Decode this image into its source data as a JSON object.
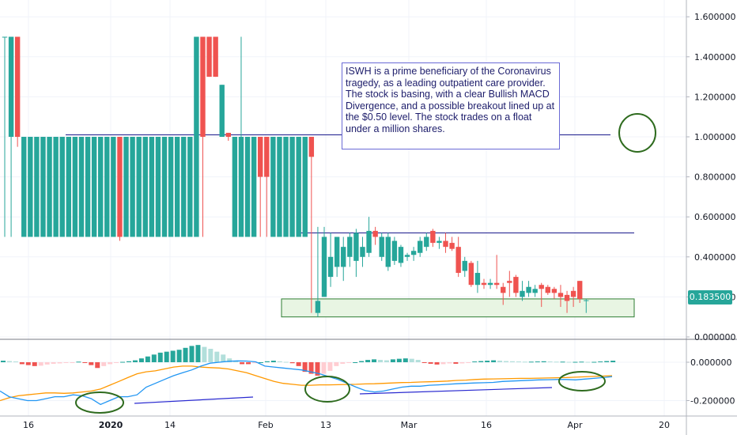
{
  "chart_data": [
    {
      "type": "candlestick",
      "symbol": "ISWH",
      "y_ticks": [
        "1.600000",
        "1.400000",
        "1.200000",
        "1.000000",
        "0.800000",
        "0.600000",
        "0.400000",
        "0.200000",
        "0.000000"
      ],
      "ylim": [
        -0.05,
        1.7
      ],
      "x_ticks": [
        "16",
        "2020",
        "14",
        "Feb",
        "13",
        "Mar",
        "16",
        "Apr",
        "20"
      ],
      "last_price": "0.183500",
      "colors": {
        "up": "#26a69a",
        "down": "#ef5350",
        "line": "#1a1a8c",
        "zone_fill": "#e8f5e3",
        "zone_border": "#2e7d32",
        "circle": "#2e6b1e"
      },
      "annotation": "ISWH is a prime beneficiary of the Coronavirus tragedy, as a leading outpatient care provider. The stock is basing, with a clear Bullish MACD Divergence, and a possible breakout lined up at the $0.50 level. The stock trades on a float under a million shares.",
      "horizontal_levels": [
        1.01,
        0.52
      ],
      "support_zone": [
        0.1,
        0.19
      ],
      "candles": [
        {
          "o": 1.5,
          "h": 1.5,
          "l": 0.5,
          "c": 1.5
        },
        {
          "o": 1.0,
          "h": 1.5,
          "l": 0.5,
          "c": 1.5
        },
        {
          "o": 1.5,
          "h": 1.5,
          "l": 0.95,
          "c": 1.0
        },
        {
          "o": 0.5,
          "h": 1.0,
          "l": 0.5,
          "c": 1.0
        },
        {
          "o": 0.5,
          "h": 1.0,
          "l": 0.5,
          "c": 1.0
        },
        {
          "o": 0.5,
          "h": 1.0,
          "l": 0.5,
          "c": 1.0
        },
        {
          "o": 0.5,
          "h": 1.0,
          "l": 0.5,
          "c": 1.0
        },
        {
          "o": 0.5,
          "h": 1.0,
          "l": 0.5,
          "c": 1.0
        },
        {
          "o": 0.5,
          "h": 1.0,
          "l": 0.5,
          "c": 1.0
        },
        {
          "o": 0.5,
          "h": 1.0,
          "l": 0.5,
          "c": 1.0
        },
        {
          "o": 0.5,
          "h": 1.0,
          "l": 0.5,
          "c": 1.0
        },
        {
          "o": 0.5,
          "h": 1.0,
          "l": 0.5,
          "c": 1.0
        },
        {
          "o": 0.5,
          "h": 1.0,
          "l": 0.5,
          "c": 1.0
        },
        {
          "o": 0.5,
          "h": 1.0,
          "l": 0.5,
          "c": 1.0
        },
        {
          "o": 0.5,
          "h": 1.0,
          "l": 0.5,
          "c": 1.0
        },
        {
          "o": 0.5,
          "h": 1.0,
          "l": 0.5,
          "c": 1.0
        },
        {
          "o": 0.5,
          "h": 1.0,
          "l": 0.5,
          "c": 1.0
        },
        {
          "o": 0.5,
          "h": 1.0,
          "l": 0.5,
          "c": 1.0
        },
        {
          "o": 1.0,
          "h": 1.0,
          "l": 0.48,
          "c": 0.5
        },
        {
          "o": 0.5,
          "h": 1.0,
          "l": 0.5,
          "c": 1.0
        },
        {
          "o": 0.5,
          "h": 1.0,
          "l": 0.5,
          "c": 1.0
        },
        {
          "o": 0.5,
          "h": 1.0,
          "l": 0.5,
          "c": 1.0
        },
        {
          "o": 0.5,
          "h": 1.0,
          "l": 0.5,
          "c": 1.0
        },
        {
          "o": 0.5,
          "h": 1.0,
          "l": 0.5,
          "c": 1.0
        },
        {
          "o": 0.5,
          "h": 1.0,
          "l": 0.5,
          "c": 1.0
        },
        {
          "o": 0.5,
          "h": 1.0,
          "l": 0.5,
          "c": 1.0
        },
        {
          "o": 0.5,
          "h": 1.0,
          "l": 0.5,
          "c": 1.0
        },
        {
          "o": 0.5,
          "h": 1.0,
          "l": 0.5,
          "c": 1.0
        },
        {
          "o": 0.5,
          "h": 1.0,
          "l": 0.5,
          "c": 1.0
        },
        {
          "o": 0.5,
          "h": 1.0,
          "l": 0.5,
          "c": 1.0
        },
        {
          "o": 0.5,
          "h": 1.5,
          "l": 0.5,
          "c": 1.5
        },
        {
          "o": 1.5,
          "h": 1.5,
          "l": 0.5,
          "c": 1.0
        },
        {
          "o": 1.5,
          "h": 1.5,
          "l": 1.3,
          "c": 1.3
        },
        {
          "o": 1.5,
          "h": 1.5,
          "l": 1.3,
          "c": 1.3
        },
        {
          "o": 1.0,
          "h": 1.26,
          "l": 1.0,
          "c": 1.26
        },
        {
          "o": 1.02,
          "h": 1.02,
          "l": 0.98,
          "c": 1.0
        },
        {
          "o": 0.5,
          "h": 1.0,
          "l": 0.5,
          "c": 1.0
        },
        {
          "o": 0.5,
          "h": 1.5,
          "l": 0.5,
          "c": 1.0
        },
        {
          "o": 0.5,
          "h": 1.0,
          "l": 0.5,
          "c": 1.0
        },
        {
          "o": 0.5,
          "h": 1.0,
          "l": 0.5,
          "c": 1.0
        },
        {
          "o": 1.0,
          "h": 1.0,
          "l": 0.5,
          "c": 0.8
        },
        {
          "o": 1.0,
          "h": 1.0,
          "l": 0.5,
          "c": 0.8
        },
        {
          "o": 0.5,
          "h": 1.0,
          "l": 0.5,
          "c": 1.0
        },
        {
          "o": 0.5,
          "h": 1.0,
          "l": 0.5,
          "c": 1.0
        },
        {
          "o": 0.5,
          "h": 1.0,
          "l": 0.5,
          "c": 1.0
        },
        {
          "o": 0.5,
          "h": 1.0,
          "l": 0.5,
          "c": 1.0
        },
        {
          "o": 0.5,
          "h": 1.0,
          "l": 0.5,
          "c": 1.0
        },
        {
          "o": 0.5,
          "h": 1.0,
          "l": 0.5,
          "c": 1.0
        },
        {
          "o": 1.0,
          "h": 1.0,
          "l": 0.12,
          "c": 0.9
        },
        {
          "o": 0.12,
          "h": 0.55,
          "l": 0.1,
          "c": 0.18
        },
        {
          "o": 0.2,
          "h": 0.55,
          "l": 0.2,
          "c": 0.5
        },
        {
          "o": 0.3,
          "h": 0.52,
          "l": 0.25,
          "c": 0.4
        },
        {
          "o": 0.35,
          "h": 0.5,
          "l": 0.3,
          "c": 0.5
        },
        {
          "o": 0.35,
          "h": 0.5,
          "l": 0.28,
          "c": 0.45
        },
        {
          "o": 0.4,
          "h": 0.52,
          "l": 0.35,
          "c": 0.5
        },
        {
          "o": 0.38,
          "h": 0.54,
          "l": 0.3,
          "c": 0.52
        },
        {
          "o": 0.4,
          "h": 0.5,
          "l": 0.35,
          "c": 0.45
        },
        {
          "o": 0.42,
          "h": 0.6,
          "l": 0.4,
          "c": 0.53
        },
        {
          "o": 0.53,
          "h": 0.55,
          "l": 0.46,
          "c": 0.5
        },
        {
          "o": 0.4,
          "h": 0.52,
          "l": 0.38,
          "c": 0.5
        },
        {
          "o": 0.35,
          "h": 0.52,
          "l": 0.33,
          "c": 0.5
        },
        {
          "o": 0.38,
          "h": 0.5,
          "l": 0.36,
          "c": 0.48
        },
        {
          "o": 0.37,
          "h": 0.46,
          "l": 0.35,
          "c": 0.45
        },
        {
          "o": 0.4,
          "h": 0.42,
          "l": 0.38,
          "c": 0.41
        },
        {
          "o": 0.41,
          "h": 0.45,
          "l": 0.38,
          "c": 0.43
        },
        {
          "o": 0.42,
          "h": 0.5,
          "l": 0.4,
          "c": 0.48
        },
        {
          "o": 0.45,
          "h": 0.52,
          "l": 0.43,
          "c": 0.5
        },
        {
          "o": 0.53,
          "h": 0.54,
          "l": 0.45,
          "c": 0.47
        },
        {
          "o": 0.47,
          "h": 0.5,
          "l": 0.44,
          "c": 0.48
        },
        {
          "o": 0.48,
          "h": 0.52,
          "l": 0.42,
          "c": 0.45
        },
        {
          "o": 0.47,
          "h": 0.5,
          "l": 0.43,
          "c": 0.44
        },
        {
          "o": 0.45,
          "h": 0.5,
          "l": 0.3,
          "c": 0.32
        },
        {
          "o": 0.33,
          "h": 0.4,
          "l": 0.3,
          "c": 0.38
        },
        {
          "o": 0.37,
          "h": 0.38,
          "l": 0.25,
          "c": 0.26
        },
        {
          "o": 0.26,
          "h": 0.38,
          "l": 0.22,
          "c": 0.32
        },
        {
          "o": 0.27,
          "h": 0.29,
          "l": 0.24,
          "c": 0.26
        },
        {
          "o": 0.26,
          "h": 0.29,
          "l": 0.24,
          "c": 0.27
        },
        {
          "o": 0.27,
          "h": 0.41,
          "l": 0.24,
          "c": 0.26
        },
        {
          "o": 0.25,
          "h": 0.27,
          "l": 0.16,
          "c": 0.22
        },
        {
          "o": 0.28,
          "h": 0.33,
          "l": 0.2,
          "c": 0.27
        },
        {
          "o": 0.3,
          "h": 0.31,
          "l": 0.2,
          "c": 0.22
        },
        {
          "o": 0.2,
          "h": 0.28,
          "l": 0.18,
          "c": 0.23
        },
        {
          "o": 0.22,
          "h": 0.28,
          "l": 0.2,
          "c": 0.25
        },
        {
          "o": 0.22,
          "h": 0.26,
          "l": 0.2,
          "c": 0.24
        },
        {
          "o": 0.26,
          "h": 0.27,
          "l": 0.15,
          "c": 0.24
        },
        {
          "o": 0.25,
          "h": 0.26,
          "l": 0.21,
          "c": 0.22
        },
        {
          "o": 0.24,
          "h": 0.25,
          "l": 0.19,
          "c": 0.22
        },
        {
          "o": 0.22,
          "h": 0.26,
          "l": 0.15,
          "c": 0.2
        },
        {
          "o": 0.21,
          "h": 0.23,
          "l": 0.12,
          "c": 0.18
        },
        {
          "o": 0.23,
          "h": 0.25,
          "l": 0.15,
          "c": 0.2
        },
        {
          "o": 0.28,
          "h": 0.28,
          "l": 0.17,
          "c": 0.19
        },
        {
          "o": 0.18,
          "h": 0.19,
          "l": 0.12,
          "c": 0.1835
        }
      ]
    },
    {
      "type": "macd",
      "y_ticks": [
        "0.000000",
        "-0.200000"
      ],
      "ylim": [
        -0.26,
        0.06
      ],
      "histogram": [
        0.008,
        0.006,
        0.004,
        -0.01,
        -0.015,
        -0.02,
        -0.018,
        -0.012,
        -0.008,
        -0.006,
        -0.004,
        -0.002,
        0.003,
        -0.002,
        -0.015,
        -0.03,
        -0.02,
        -0.01,
        -0.004,
        0.002,
        0.005,
        0.01,
        0.02,
        0.03,
        0.04,
        0.05,
        0.055,
        0.06,
        0.065,
        0.075,
        0.085,
        0.09,
        0.08,
        0.07,
        0.055,
        0.04,
        0.02,
        0.005,
        -0.01,
        -0.01,
        -0.005,
        0.0,
        0.005,
        0.008,
        0.005,
        0.002,
        -0.005,
        -0.02,
        -0.05,
        -0.06,
        -0.07,
        -0.06,
        -0.045,
        -0.02,
        -0.008,
        -0.004,
        0.0,
        0.006,
        0.012,
        0.015,
        0.012,
        0.01,
        0.015,
        0.018,
        0.02,
        0.018,
        0.012,
        -0.004,
        -0.008,
        -0.012,
        -0.01,
        -0.006,
        -0.008,
        -0.006,
        -0.004,
        0.004,
        0.006,
        0.008,
        0.01,
        0.008,
        0.006,
        0.005,
        0.004,
        0.003,
        0.003,
        0.004,
        0.005,
        0.004,
        0.003,
        0.003,
        0.002,
        0.002,
        0.003,
        0.002,
        0.002,
        0.004,
        0.006,
        0.008
      ],
      "macd": [
        -0.15,
        -0.18,
        -0.19,
        -0.2,
        -0.2,
        -0.19,
        -0.18,
        -0.18,
        -0.17,
        -0.175,
        -0.19,
        -0.22,
        -0.2,
        -0.18,
        -0.18,
        -0.17,
        -0.13,
        -0.11,
        -0.09,
        -0.07,
        -0.055,
        -0.04,
        -0.02,
        -0.005,
        0.0,
        0.005,
        0.007,
        0.006,
        0.002,
        -0.02,
        -0.025,
        -0.03,
        -0.035,
        -0.04,
        -0.05,
        -0.06,
        -0.075,
        -0.09,
        -0.11,
        -0.13,
        -0.148,
        -0.155,
        -0.15,
        -0.14,
        -0.13,
        -0.125,
        -0.125,
        -0.12,
        -0.118,
        -0.115,
        -0.112,
        -0.11,
        -0.108,
        -0.107,
        -0.105,
        -0.1,
        -0.098,
        -0.096,
        -0.094,
        -0.092,
        -0.091,
        -0.09,
        -0.09,
        -0.092,
        -0.088,
        -0.084,
        -0.08,
        -0.075
      ],
      "signal": [
        -0.2,
        -0.185,
        -0.175,
        -0.17,
        -0.165,
        -0.16,
        -0.16,
        -0.162,
        -0.16,
        -0.155,
        -0.15,
        -0.14,
        -0.12,
        -0.1,
        -0.08,
        -0.06,
        -0.05,
        -0.045,
        -0.035,
        -0.025,
        -0.02,
        -0.02,
        -0.025,
        -0.028,
        -0.03,
        -0.035,
        -0.045,
        -0.055,
        -0.07,
        -0.085,
        -0.1,
        -0.11,
        -0.115,
        -0.12,
        -0.12,
        -0.118,
        -0.118,
        -0.117,
        -0.116,
        -0.115,
        -0.113,
        -0.112,
        -0.11,
        -0.108,
        -0.106,
        -0.105,
        -0.103,
        -0.102,
        -0.1,
        -0.098,
        -0.095,
        -0.093,
        -0.09,
        -0.088,
        -0.087,
        -0.086,
        -0.085,
        -0.084,
        -0.084,
        -0.083,
        -0.082,
        -0.081,
        -0.08,
        -0.078,
        -0.076,
        -0.074,
        -0.072,
        -0.07
      ],
      "divergence_lines": [
        {
          "from": [
            -0.245
          ],
          "to": [
            -0.212
          ]
        },
        {
          "from": [
            -0.17
          ],
          "to": [
            -0.14
          ]
        }
      ],
      "colors": {
        "macd": "#2196f3",
        "signal": "#ff9800",
        "hist_up_strong": "#26a69a",
        "hist_up_weak": "#b2dfdb",
        "hist_down_strong": "#ef5350",
        "hist_down_weak": "#ffcdd2"
      }
    }
  ]
}
